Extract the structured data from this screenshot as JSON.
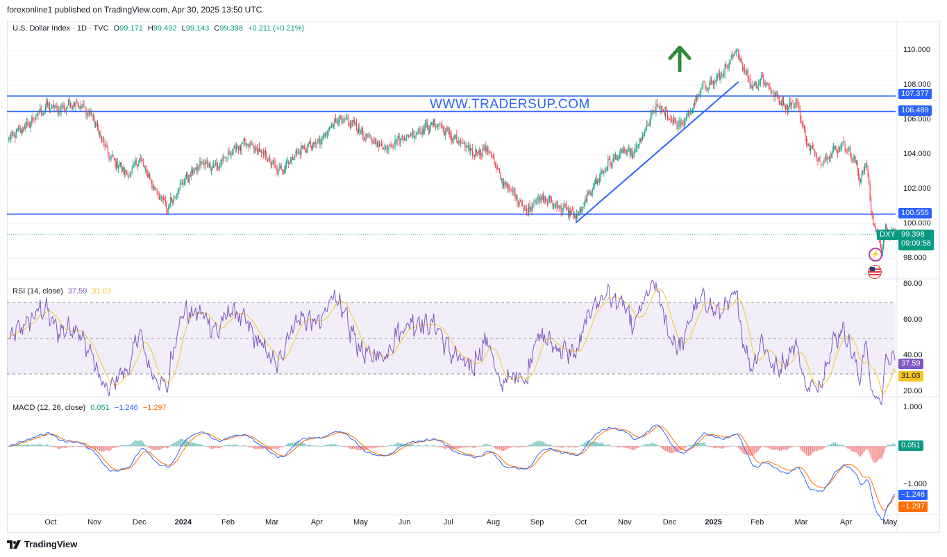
{
  "header": {
    "publisher": "forexonline1 published on TradingView.com, Apr 30, 2025 13:50 UTC"
  },
  "legend": {
    "symbol": "U.S. Dollar Index · 1D · TVC",
    "open_label": "O",
    "open": "99.171",
    "high_label": "H",
    "high": "99.492",
    "low_label": "L",
    "low": "99.143",
    "close_label": "C",
    "close": "99.398",
    "change": "+0.211 (+0.21%)"
  },
  "watermark": "WWW.TRADERSUP.COM",
  "price_tags": {
    "ticker": "DXY",
    "last": "99.398",
    "countdown": "09:09:58",
    "level_1": "107.377",
    "level_2": "106.489",
    "level_3": "100.555"
  },
  "rsi_legend": {
    "label": "RSI (14, close)",
    "value": "37.59",
    "ma": "31.03"
  },
  "macd_legend": {
    "label": "MACD (12, 26, close)",
    "hist": "0.051",
    "macd": "−1.246",
    "signal": "−1.297"
  },
  "footer": {
    "brand": "TradingView"
  },
  "colors": {
    "up": "#089981",
    "down": "#f23645",
    "line": "#2962ff",
    "rsi": "#7e57c2",
    "rsi_ma": "#f7c521",
    "macd": "#2962ff",
    "signal": "#ff6d00"
  },
  "chart_data": [
    {
      "type": "candlestick",
      "title": "U.S. Dollar Index · 1D · TVC",
      "y_range": [
        96.9,
        111.0
      ],
      "y_ticks": [
        "110.000",
        "108.000",
        "106.000",
        "104.000",
        "102.000",
        "100.000",
        "98.000"
      ],
      "y_tick_values": [
        110,
        108,
        106,
        104,
        102,
        100,
        98
      ],
      "x_labels": [
        "Oct",
        "Nov",
        "Dec",
        "2024",
        "Feb",
        "Mar",
        "Apr",
        "May",
        "Jun",
        "Jul",
        "Aug",
        "Sep",
        "Oct",
        "Nov",
        "Dec",
        "2025",
        "Feb",
        "Mar",
        "Apr",
        "May"
      ],
      "x_label_index": [
        40,
        82,
        125,
        167,
        210,
        252,
        295,
        337,
        379,
        421,
        464,
        506,
        548,
        590,
        633,
        675,
        717,
        759,
        802,
        844
      ],
      "bold_labels": [
        "2024",
        "2025"
      ],
      "bar_count": 850,
      "price_anchors": [
        [
          0,
          104.9
        ],
        [
          20,
          105.8
        ],
        [
          36,
          106.8
        ],
        [
          48,
          106.6
        ],
        [
          64,
          107.0
        ],
        [
          80,
          106.2
        ],
        [
          95,
          104.0
        ],
        [
          115,
          102.8
        ],
        [
          125,
          103.8
        ],
        [
          140,
          102.0
        ],
        [
          152,
          100.9
        ],
        [
          165,
          102.3
        ],
        [
          185,
          103.5
        ],
        [
          200,
          103.3
        ],
        [
          215,
          104.3
        ],
        [
          228,
          104.6
        ],
        [
          245,
          104.0
        ],
        [
          258,
          103.0
        ],
        [
          278,
          104.2
        ],
        [
          300,
          104.8
        ],
        [
          312,
          106.0
        ],
        [
          330,
          105.8
        ],
        [
          342,
          105.0
        ],
        [
          360,
          104.4
        ],
        [
          372,
          104.8
        ],
        [
          390,
          105.3
        ],
        [
          410,
          105.8
        ],
        [
          425,
          105.0
        ],
        [
          445,
          104.1
        ],
        [
          460,
          104.3
        ],
        [
          470,
          102.7
        ],
        [
          488,
          101.4
        ],
        [
          496,
          100.7
        ],
        [
          505,
          101.4
        ],
        [
          515,
          101.4
        ],
        [
          530,
          100.9
        ],
        [
          545,
          100.4
        ],
        [
          560,
          102.2
        ],
        [
          575,
          103.5
        ],
        [
          590,
          104.2
        ],
        [
          598,
          104.0
        ],
        [
          610,
          105.4
        ],
        [
          620,
          106.8
        ],
        [
          635,
          106.0
        ],
        [
          645,
          105.7
        ],
        [
          655,
          106.7
        ],
        [
          665,
          107.9
        ],
        [
          680,
          108.4
        ],
        [
          690,
          109.2
        ],
        [
          697,
          110.0
        ],
        [
          705,
          108.9
        ],
        [
          712,
          107.9
        ],
        [
          722,
          108.4
        ],
        [
          735,
          107.3
        ],
        [
          745,
          106.8
        ],
        [
          755,
          107.0
        ],
        [
          765,
          104.6
        ],
        [
          778,
          103.6
        ],
        [
          790,
          104.2
        ],
        [
          800,
          104.6
        ],
        [
          810,
          103.7
        ],
        [
          815,
          102.6
        ],
        [
          822,
          103.5
        ],
        [
          826,
          100.6
        ],
        [
          830,
          99.7
        ],
        [
          836,
          98.6
        ],
        [
          840,
          99.6
        ],
        [
          846,
          99.4
        ],
        [
          849,
          99.398
        ]
      ],
      "levels": [
        {
          "value": 107.377,
          "label": "107.377"
        },
        {
          "value": 106.489,
          "label": "106.489"
        },
        {
          "value": 100.555,
          "label": "100.555"
        }
      ],
      "trendline": [
        [
          543,
          100.05
        ],
        [
          699,
          108.2
        ]
      ],
      "last": 99.398
    },
    {
      "type": "line",
      "title": "RSI (14, close)",
      "y_range": [
        18,
        82
      ],
      "y_ticks": [
        "80.00",
        "60.00",
        "40.00",
        "20.00"
      ],
      "y_tick_values": [
        80,
        60,
        40,
        20
      ],
      "band": [
        30,
        70
      ],
      "mid": 50,
      "last": 37.59,
      "ma_last": 31.03
    },
    {
      "type": "line",
      "title": "MACD (12, 26, close)",
      "y_range": [
        -1.75,
        1.25
      ],
      "y_ticks": [
        "1.000",
        "−1.000"
      ],
      "y_tick_values": [
        1.0,
        -1.0
      ],
      "macd_last": -1.246,
      "signal_last": -1.297,
      "hist_last": 0.051
    }
  ]
}
